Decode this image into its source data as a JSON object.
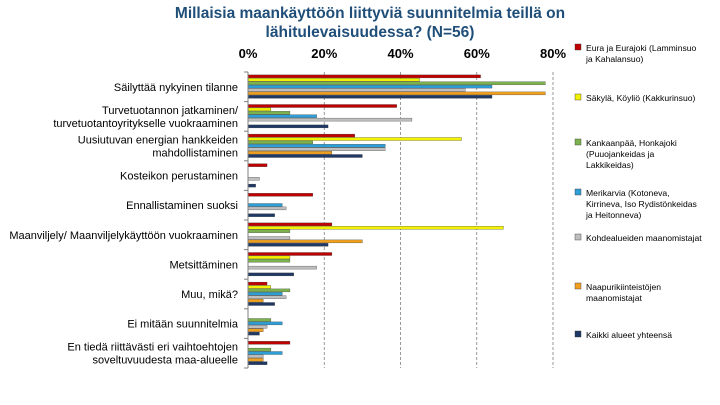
{
  "chart_data": {
    "type": "bar",
    "orientation": "horizontal",
    "title": "Millaisia maankäyttöön liittyviä suunnitelmia teillä on lähitulevaisuudessa? (N=56)",
    "xlim": [
      0,
      80
    ],
    "x_ticks": [
      "0%",
      "20%",
      "40%",
      "60%",
      "80%"
    ],
    "x_tick_values": [
      0,
      20,
      40,
      60,
      80
    ],
    "grid": true,
    "legend_position": "right",
    "categories": [
      "Säilyttää nykyinen tilanne",
      "Turvetuotannon jatkaminen/ turvetuotantoyritykselle vuokraaminen",
      "Uusiutuvan energian hankkeiden mahdollistaminen",
      "Kosteikon perustaminen",
      "Ennallistaminen suoksi",
      "Maanviljely/ Maanviljelykäyttöön vuokraaminen",
      "Metsittäminen",
      "Muu, mikä?",
      "Ei mitään suunnitelmia",
      "En tiedä riittävästi eri vaihtoehtojen soveltuvuudesta maa-alueelle"
    ],
    "category_lines": [
      [
        "Säilyttää nykyinen tilanne"
      ],
      [
        "Turvetuotannon jatkaminen/",
        "turvetuotantoyritykselle vuokraaminen"
      ],
      [
        "Uusiutuvan energian hankkeiden",
        "mahdollistaminen"
      ],
      [
        "Kosteikon perustaminen"
      ],
      [
        "Ennallistaminen suoksi"
      ],
      [
        "Maanviljely/ Maanviljelykäyttöön vuokraaminen"
      ],
      [
        "Metsittäminen"
      ],
      [
        "Muu, mikä?"
      ],
      [
        "Ei mitään suunnitelmia"
      ],
      [
        "En tiedä riittävästi eri vaihtoehtojen",
        "soveltuvuudesta maa-alueelle"
      ]
    ],
    "series": [
      {
        "name": "Eura ja Eurajoki (Lamminsuo ja Kahalansuo)",
        "name_lines": [
          "Eura ja Eurajoki (Lamminsuo",
          "ja Kahalansuo)"
        ],
        "color": "#c00000",
        "values": [
          61,
          39,
          28,
          5,
          17,
          22,
          22,
          5,
          0,
          11
        ]
      },
      {
        "name": "Säkylä, Köyliö (Kakkurinsuo)",
        "name_lines": [
          "Säkylä, Köyliö (Kakkurinsuo)"
        ],
        "color": "#f2f200",
        "values": [
          45,
          6,
          56,
          0,
          0,
          67,
          11,
          6,
          0,
          0
        ]
      },
      {
        "name": "Kankaanpää, Honkajoki (Puuojankeidas ja Lakkikeidas)",
        "name_lines": [
          "Kankaanpää, Honkajoki",
          "(Puuojankeidas ja",
          "Lakkikeidas)"
        ],
        "color": "#7cb24d",
        "values": [
          78,
          11,
          17,
          0,
          0,
          11,
          11,
          11,
          6,
          6
        ]
      },
      {
        "name": "Merikarvia (Kotoneva, Kirrineva, Iso Rydistönkeidas ja Heitonneva)",
        "name_lines": [
          "Merikarvia (Kotoneva,",
          "Kirrineva, Iso Rydistönkeidas",
          "ja Heitonneva)"
        ],
        "color": "#2e9ed6",
        "values": [
          64,
          18,
          36,
          0,
          9,
          0,
          0,
          9,
          9,
          9
        ]
      },
      {
        "name": "Kohdealueiden maanomistajat",
        "name_lines": [
          "Kohdealueiden maanomistajat"
        ],
        "color": "#bfbfbf",
        "values": [
          57,
          43,
          36,
          3,
          10,
          11,
          18,
          10,
          5,
          4
        ]
      },
      {
        "name": "Naapurikiinteistöjen maanomistajat",
        "name_lines": [
          "Naapurikiinteistöjen",
          "maanomistajat"
        ],
        "color": "#f0a020",
        "values": [
          78,
          0,
          22,
          0,
          0,
          30,
          0,
          4,
          4,
          4
        ]
      },
      {
        "name": "Kaikki alueet yhteensä",
        "name_lines": [
          "Kaikki alueet yhteensä"
        ],
        "color": "#1f3864",
        "values": [
          64,
          21,
          30,
          2,
          7,
          21,
          12,
          7,
          3,
          5
        ]
      }
    ]
  }
}
